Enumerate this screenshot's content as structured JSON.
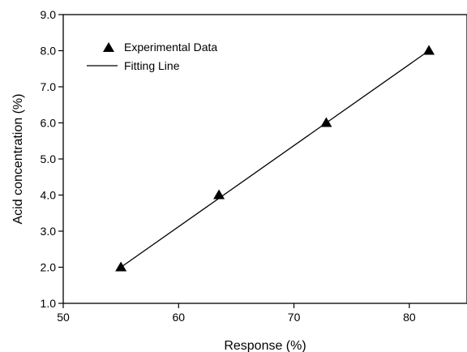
{
  "chart_data": {
    "type": "scatter",
    "title": "",
    "xlabel": "Response (%)",
    "ylabel": "Acid concentration (%)",
    "xlim": [
      50,
      85
    ],
    "ylim": [
      1.0,
      9.0
    ],
    "x_ticks": [
      50,
      60,
      70,
      80
    ],
    "x_tick_labels": [
      "50",
      "60",
      "70",
      "80"
    ],
    "y_ticks": [
      1.0,
      2.0,
      3.0,
      4.0,
      5.0,
      6.0,
      7.0,
      8.0,
      9.0
    ],
    "y_tick_labels": [
      "1.0",
      "2.0",
      "3.0",
      "4.0",
      "5.0",
      "6.0",
      "7.0",
      "8.0",
      "9.0"
    ],
    "grid": false,
    "legend_position": "top-left",
    "series": [
      {
        "name": "Experimental Data",
        "kind": "scatter",
        "marker": "triangle",
        "color": "#000000",
        "x": [
          55.0,
          63.5,
          72.8,
          81.7
        ],
        "y": [
          2.0,
          4.0,
          6.0,
          8.0
        ]
      },
      {
        "name": "Fitting Line",
        "kind": "line",
        "color": "#000000",
        "x": [
          55.0,
          81.7
        ],
        "y": [
          2.0,
          8.0
        ]
      }
    ]
  }
}
